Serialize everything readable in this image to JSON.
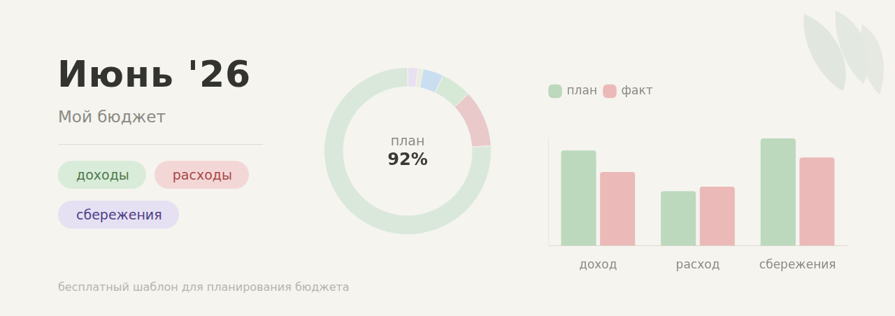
{
  "header": {
    "title": "Июнь '26",
    "subtitle": "Мой бюджет"
  },
  "tags": [
    "доходы",
    "расходы",
    "сбережения"
  ],
  "footer": "бесплатный шаблон для планирования бюджета",
  "chart_data": [
    {
      "type": "doughnut",
      "categories": [
        null,
        null,
        null,
        null,
        null,
        null
      ],
      "values": [
        2,
        1,
        4,
        6,
        11,
        76
      ],
      "colors": [
        "#e7e1f2",
        "#ecebdf",
        "#c9def0",
        "#d6e8d6",
        "#e9c9ca",
        "#d9e8da"
      ],
      "annotations": [
        "план",
        "92%"
      ]
    },
    {
      "type": "bar",
      "categories": [
        "доход",
        "расход",
        "сбережения"
      ],
      "series": [
        {
          "name": "план",
          "color": "#bcd8bd",
          "values": [
            150,
            86,
            169
          ]
        },
        {
          "name": "факт",
          "color": "#ebb9b8",
          "values": [
            116,
            93,
            139
          ]
        }
      ],
      "ylim": [
        0,
        170
      ],
      "legend": "top",
      "grid": false,
      "tick_labels": "x"
    }
  ]
}
